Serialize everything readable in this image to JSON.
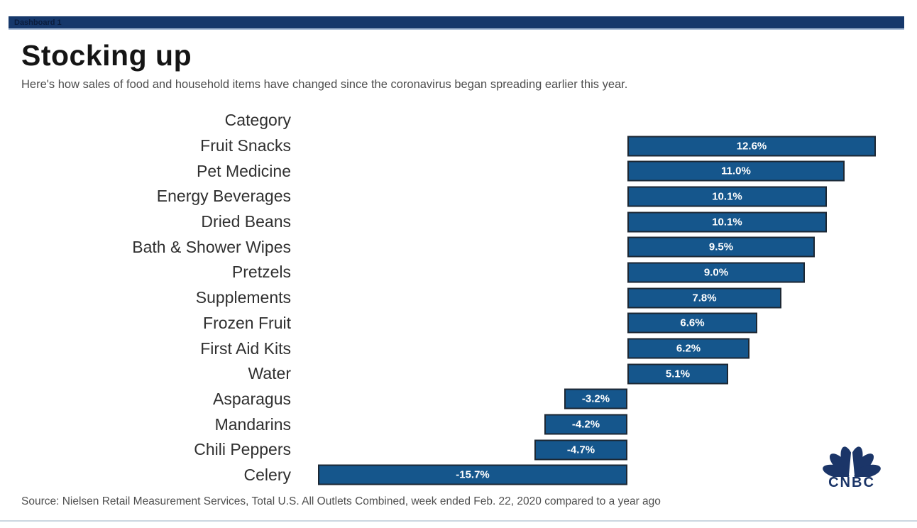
{
  "tab": {
    "label": "Dashboard 1"
  },
  "header": {
    "title": "Stocking up",
    "subtitle": "Here's how sales of food and household items have changed since the coronavirus began spreading earlier this year."
  },
  "chart_data": {
    "type": "bar",
    "orientation": "horizontal",
    "column_header": "Category",
    "categories": [
      "Fruit Snacks",
      "Pet Medicine",
      "Energy Beverages",
      "Dried Beans",
      "Bath & Shower Wipes",
      "Pretzels",
      "Supplements",
      "Frozen Fruit",
      "First Aid Kits",
      "Water",
      "Asparagus",
      "Mandarins",
      "Chili Peppers",
      "Celery"
    ],
    "values": [
      12.6,
      11.0,
      10.1,
      10.1,
      9.5,
      9.0,
      7.8,
      6.6,
      6.2,
      5.1,
      -3.2,
      -4.2,
      -4.7,
      -15.7
    ],
    "labels": [
      "12.6%",
      "11.0%",
      "10.1%",
      "10.1%",
      "9.5%",
      "9.0%",
      "7.8%",
      "6.6%",
      "6.2%",
      "5.1%",
      "-3.2%",
      "-4.2%",
      "-4.7%",
      "-15.7%"
    ],
    "unit": "%",
    "bar_color": "#15568c",
    "bar_border_color": "#1c2733",
    "value_label_color": "#ffffff",
    "baseline": 0,
    "grid": false,
    "legend": false
  },
  "footer": {
    "source": "Source: Nielsen Retail Measurement Services, Total U.S. All Outlets Combined, week ended Feb. 22, 2020 compared to a year ago"
  },
  "branding": {
    "logo_text": "CNBC",
    "logo_color": "#1b3568"
  }
}
